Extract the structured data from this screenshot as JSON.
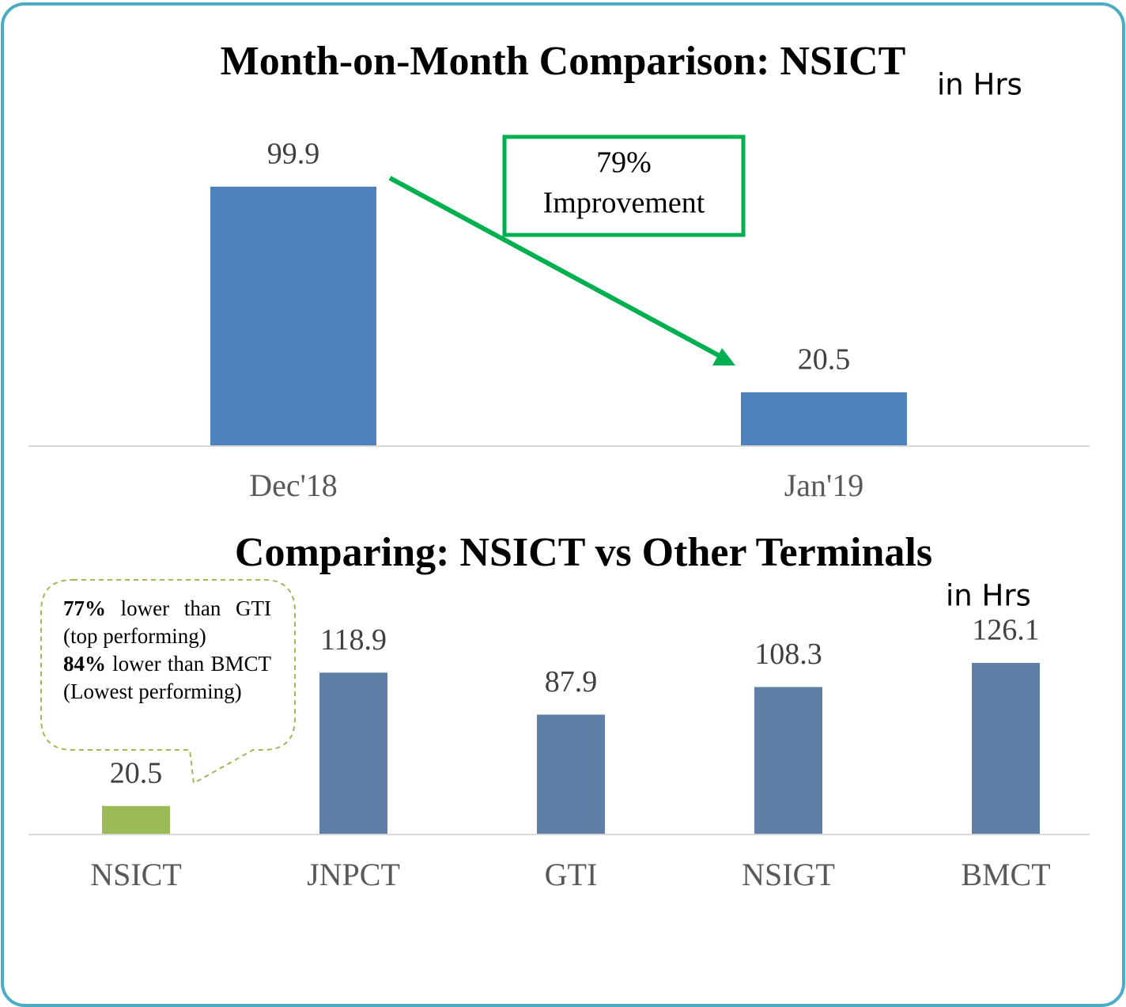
{
  "chart_data": [
    {
      "type": "bar",
      "title": "Month-on-Month Comparison: NSICT",
      "subtitle": "in Hrs",
      "categories": [
        "Dec'18",
        "Jan'19"
      ],
      "values": [
        99.9,
        20.5
      ],
      "color": "#4f81bd",
      "annotations": [
        "79%",
        "Improvement"
      ]
    },
    {
      "type": "bar",
      "title": "Comparing: NSICT vs Other Terminals",
      "subtitle": "in Hrs",
      "categories": [
        "NSICT",
        "JNPCT",
        "GTI",
        "NSIGT",
        "BMCT"
      ],
      "values": [
        20.5,
        118.9,
        87.9,
        108.3,
        126.1
      ],
      "colors": [
        "#9bbb59",
        "#5f7fa7",
        "#5f7fa7",
        "#5f7fa7",
        "#5f7fa7"
      ],
      "callout": [
        {
          "bold": "77%",
          "text": " lower than GTI (top performing)"
        },
        {
          "bold": "84%",
          "text": " lower than BMCT (Lowest performing)"
        }
      ]
    }
  ]
}
